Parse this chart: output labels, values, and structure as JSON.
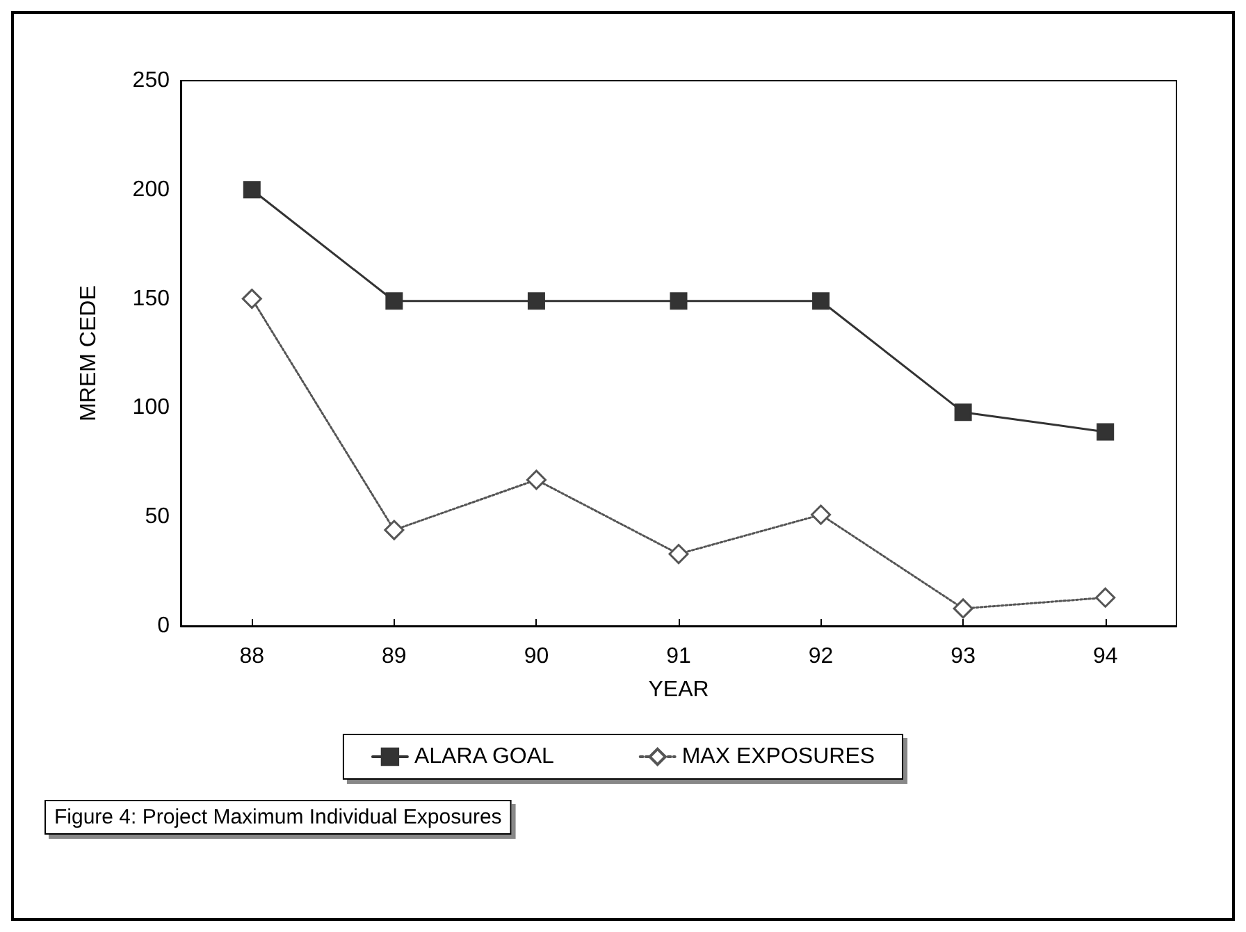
{
  "chart_data": {
    "type": "line",
    "xlabel": "YEAR",
    "ylabel": "MREM CEDE",
    "categories": [
      "88",
      "89",
      "90",
      "91",
      "92",
      "93",
      "94"
    ],
    "series": [
      {
        "name": "ALARA GOAL",
        "color": "#333333",
        "marker": "square",
        "line_style": "solid",
        "values": [
          200,
          149,
          149,
          149,
          149,
          98,
          89
        ]
      },
      {
        "name": "MAX EXPOSURES",
        "color": "#555555",
        "marker": "diamond",
        "line_style": "dotted",
        "values": [
          150,
          44,
          67,
          33,
          51,
          8,
          13
        ]
      }
    ],
    "ylim": [
      0,
      250
    ],
    "yticks": [
      0,
      50,
      100,
      150,
      200,
      250
    ],
    "grid": false,
    "legend": "bottom",
    "annotations": [
      "Figure 4: Project Maximum Individual Exposures"
    ]
  }
}
